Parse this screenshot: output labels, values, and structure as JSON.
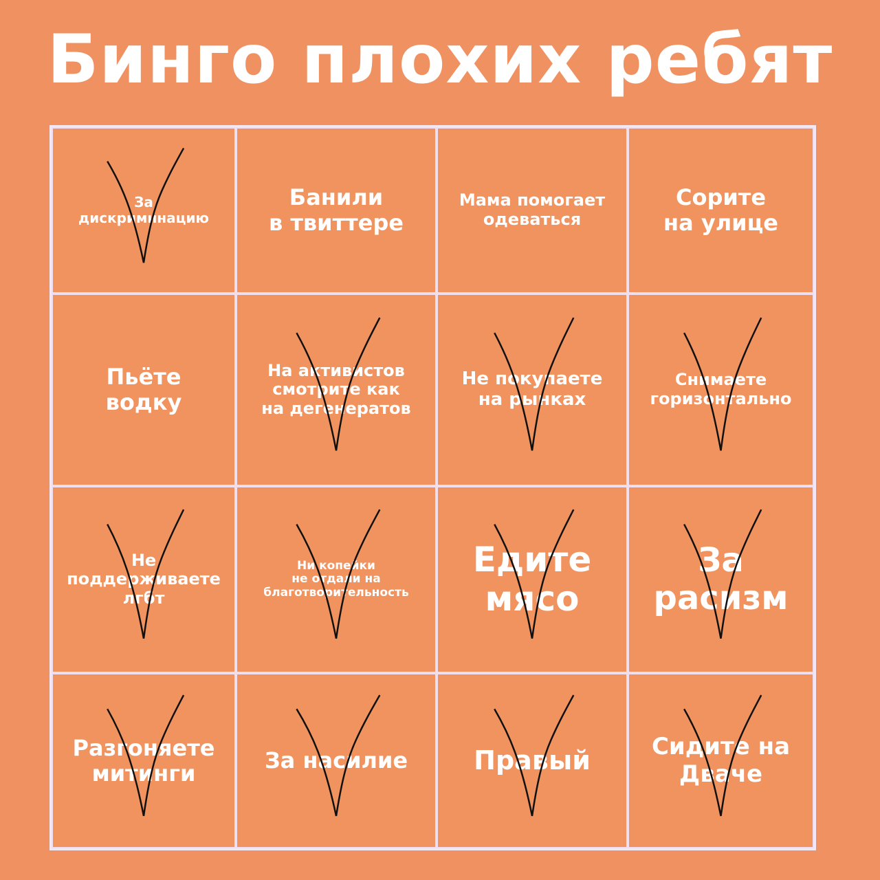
{
  "title": "Бинго плохих ребят",
  "colors": {
    "background": "#ef9161",
    "cell": "#f0935f",
    "grid": "#f1dff0",
    "text": "#ffffff",
    "checkmark": "#111111"
  },
  "cells": [
    {
      "text": "За\nдискриминацию",
      "checked": true
    },
    {
      "text": "Банили\nв твиттере",
      "checked": false
    },
    {
      "text": "Мама помогает\nодеваться",
      "checked": false
    },
    {
      "text": "Сорите\nна улице",
      "checked": false
    },
    {
      "text": "Пьёте\nводку",
      "checked": false
    },
    {
      "text": "На активистов\nсмотрите как\nна дегенератов",
      "checked": true
    },
    {
      "text": "Не покупаете\nна рынках",
      "checked": true
    },
    {
      "text": "Снимаете\nгоризонтально",
      "checked": true
    },
    {
      "text": "Не\nподдерживаете\nлгбт",
      "checked": true
    },
    {
      "text": "Ни копейки\nне отдали на\nблаготворительность",
      "checked": true
    },
    {
      "text": "Едите\nмясо",
      "checked": true
    },
    {
      "text": "За\nрасизм",
      "checked": true
    },
    {
      "text": "Разгоняете\nмитинги",
      "checked": true
    },
    {
      "text": "За насилие",
      "checked": true
    },
    {
      "text": "Правый",
      "checked": true
    },
    {
      "text": "Сидите на\nДваче",
      "checked": true
    }
  ]
}
